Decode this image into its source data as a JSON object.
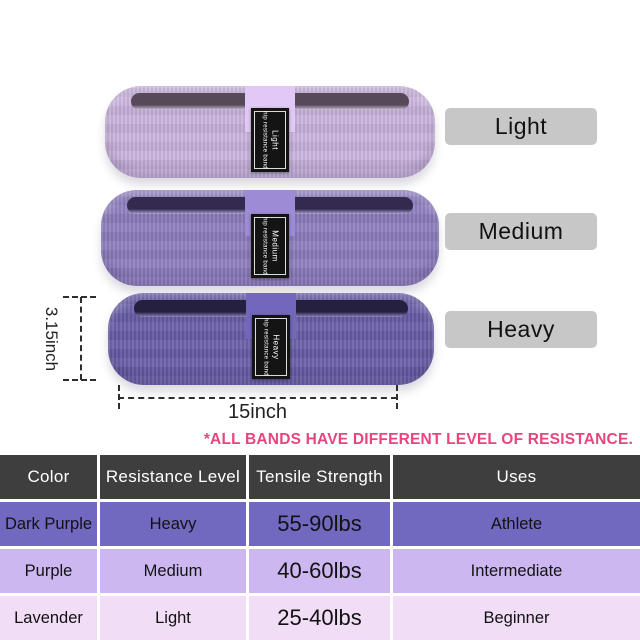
{
  "note": "*ALL BANDS HAVE DIFFERENT LEVEL OF RESISTANCE.",
  "accent_pink": "#e8457a",
  "product": {
    "bands": [
      {
        "name": "Light",
        "color": "#c9b3dc",
        "opening_color": "#57495a",
        "tag_title": "Light",
        "tag_subtitle": "hip resistance band"
      },
      {
        "name": "Medium",
        "color": "#8d7cbe",
        "opening_color": "#342a50",
        "tag_title": "Medium",
        "tag_subtitle": "hip resistance band"
      },
      {
        "name": "Heavy",
        "color": "#675ca7",
        "opening_color": "#251f40",
        "tag_title": "Heavy",
        "tag_subtitle": "hip resistance band"
      }
    ],
    "side_labels": [
      {
        "label": "Light"
      },
      {
        "label": "Medium"
      },
      {
        "label": "Heavy"
      }
    ],
    "side_label_bg": "#c7c7c7",
    "dimensions": {
      "height": "3.15inch",
      "width": "15inch"
    }
  },
  "table": {
    "header_bg": "#3e3e3e",
    "row_colors": [
      "#7168bf",
      "#cdb7f0",
      "#f1def6"
    ],
    "headers": [
      "Color",
      "Resistance Level",
      "Tensile Strength",
      "Uses"
    ],
    "rows": [
      [
        "Dark Purple",
        "Heavy",
        "55-90lbs",
        "Athlete"
      ],
      [
        "Purple",
        "Medium",
        "40-60lbs",
        "Intermediate"
      ],
      [
        "Lavender",
        "Light",
        "25-40lbs",
        "Beginner"
      ]
    ]
  }
}
